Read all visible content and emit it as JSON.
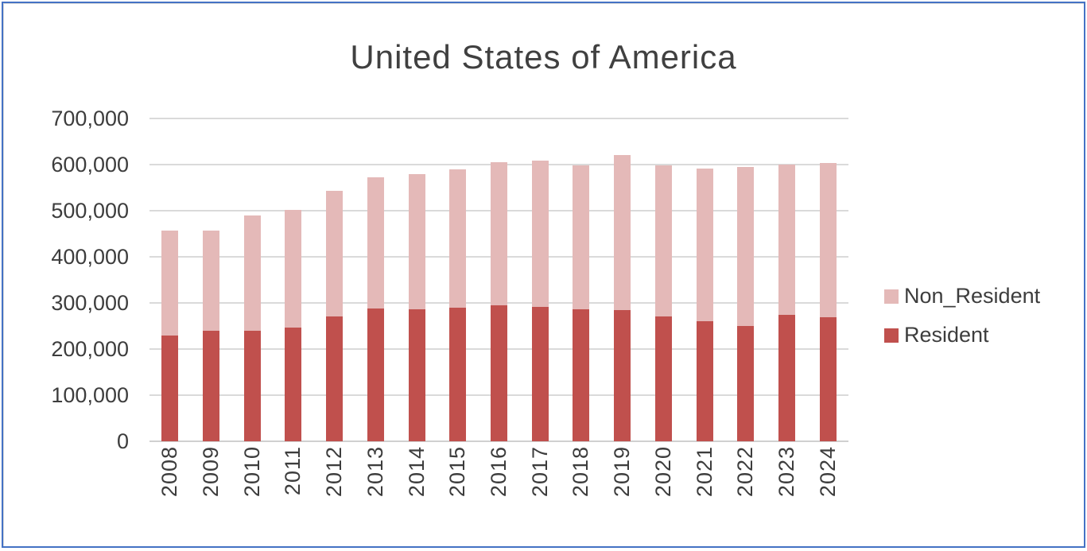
{
  "frame": {
    "border_color": "#4472C4",
    "background": "#ffffff"
  },
  "chart_data": {
    "type": "bar",
    "stacked": true,
    "title": "United States of America",
    "xlabel": "",
    "ylabel": "",
    "grid": true,
    "legend_position": "right",
    "ylim": [
      0,
      700000
    ],
    "ytick_interval": 100000,
    "categories": [
      "2008",
      "2009",
      "2010",
      "2011",
      "2012",
      "2013",
      "2014",
      "2015",
      "2016",
      "2017",
      "2018",
      "2019",
      "2020",
      "2021",
      "2022",
      "2023",
      "2024"
    ],
    "series": [
      {
        "name": "Resident",
        "color": "#C0504D",
        "values": [
          230000,
          240000,
          240000,
          246000,
          270000,
          288000,
          286000,
          289000,
          295000,
          291000,
          286000,
          285000,
          270000,
          261000,
          250000,
          275000,
          269000
        ]
      },
      {
        "name": "Non_Resident",
        "color": "#E4B9B8",
        "values": [
          227000,
          217000,
          250000,
          256000,
          273000,
          284000,
          293000,
          300000,
          310000,
          317000,
          312000,
          336000,
          329000,
          331000,
          344000,
          325000,
          334000
        ]
      }
    ],
    "legend": [
      "Non_Resident",
      "Resident"
    ],
    "y_ticks": [
      {
        "value": 0,
        "label": "0"
      },
      {
        "value": 100000,
        "label": "100,000"
      },
      {
        "value": 200000,
        "label": "200,000"
      },
      {
        "value": 300000,
        "label": "300,000"
      },
      {
        "value": 400000,
        "label": "400,000"
      },
      {
        "value": 500000,
        "label": "500,000"
      },
      {
        "value": 600000,
        "label": "600,000"
      },
      {
        "value": 700000,
        "label": "700,000"
      }
    ]
  }
}
